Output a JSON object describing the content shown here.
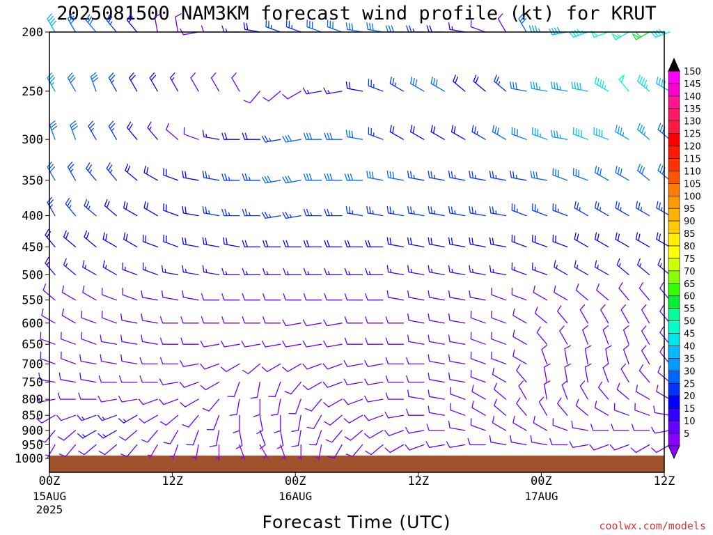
{
  "chart_data": {
    "type": "wind_barb_time_height",
    "title": "2025081500 NAM3KM forecast wind profile (kt) for KRUT",
    "xlabel": "Forecast Time (UTC)",
    "credit": "coolwx.com/models",
    "y_axis": {
      "label": "",
      "scale": "log",
      "range": [
        1000,
        200
      ],
      "reversed": true,
      "ticks": [
        "200",
        "250",
        "300",
        "350",
        "400",
        "450",
        "500",
        "550",
        "600",
        "650",
        "700",
        "750",
        "800",
        "850",
        "900",
        "950",
        "1000"
      ]
    },
    "x_axis": {
      "range_hours": [
        0,
        60
      ],
      "ticks": [
        {
          "hour": 0,
          "label": "00Z",
          "sub": [
            "15AUG",
            "2025"
          ]
        },
        {
          "hour": 12,
          "label": "12Z",
          "sub": []
        },
        {
          "hour": 24,
          "label": "00Z",
          "sub": [
            "16AUG"
          ]
        },
        {
          "hour": 36,
          "label": "12Z",
          "sub": []
        },
        {
          "hour": 48,
          "label": "00Z",
          "sub": [
            "17AUG"
          ]
        },
        {
          "hour": 60,
          "label": "12Z",
          "sub": []
        }
      ]
    },
    "barb_interval_hours": 2,
    "terrain_color": "#a0522d",
    "colorbar": {
      "labels": [
        "150",
        "145",
        "140",
        "135",
        "130",
        "125",
        "120",
        "115",
        "110",
        "105",
        "100",
        "95",
        "90",
        "85",
        "80",
        "75",
        "70",
        "65",
        "60",
        "55",
        "50",
        "45",
        "40",
        "35",
        "30",
        "25",
        "20",
        "15",
        "10",
        "5"
      ],
      "colors": [
        "#ff00ff",
        "#ff00cc",
        "#ff1493",
        "#ff1a66",
        "#ff1a40",
        "#ff0000",
        "#ff1a00",
        "#ff3300",
        "#ff5500",
        "#ff7a00",
        "#ff9900",
        "#ffb300",
        "#ffcc00",
        "#ffee00",
        "#ffff00",
        "#ccff00",
        "#88ff00",
        "#33ff00",
        "#00ee33",
        "#00ff99",
        "#00ffcc",
        "#00e5e5",
        "#00bbff",
        "#0099ff",
        "#0066ff",
        "#0033ff",
        "#0000ff",
        "#3300ff",
        "#6600ff",
        "#8800ff"
      ]
    },
    "series": [
      {
        "level": 200,
        "dir_deg": [
          330,
          330,
          320,
          320,
          320,
          350,
          350,
          260,
          270,
          270,
          280,
          290,
          290,
          290,
          290,
          280,
          280,
          270,
          270,
          270,
          280,
          290,
          330,
          330,
          270,
          260,
          250,
          250,
          240,
          240,
          250
        ],
        "speed_kt": [
          40,
          30,
          30,
          25,
          20,
          10,
          10,
          10,
          10,
          15,
          20,
          25,
          25,
          30,
          30,
          30,
          30,
          30,
          25,
          20,
          15,
          10,
          10,
          30,
          35,
          40,
          45,
          50,
          55,
          60,
          45
        ]
      },
      {
        "level": 250,
        "dir_deg": [
          330,
          330,
          340,
          330,
          330,
          330,
          330,
          330,
          330,
          330,
          220,
          230,
          240,
          260,
          260,
          280,
          290,
          300,
          300,
          300,
          310,
          310,
          310,
          280,
          280,
          280,
          280,
          300,
          320,
          310,
          300
        ],
        "speed_kt": [
          35,
          30,
          30,
          25,
          20,
          20,
          15,
          10,
          10,
          10,
          10,
          10,
          10,
          15,
          15,
          20,
          25,
          25,
          30,
          30,
          20,
          20,
          25,
          30,
          35,
          35,
          40,
          45,
          50,
          45,
          40
        ]
      },
      {
        "level": 300,
        "dir_deg": [
          340,
          340,
          330,
          330,
          320,
          320,
          310,
          290,
          280,
          270,
          270,
          260,
          260,
          270,
          270,
          280,
          290,
          300,
          300,
          300,
          300,
          300,
          300,
          290,
          290,
          280,
          290,
          290,
          300,
          310,
          310
        ],
        "speed_kt": [
          30,
          30,
          25,
          25,
          20,
          15,
          10,
          10,
          15,
          20,
          20,
          25,
          30,
          30,
          30,
          30,
          25,
          20,
          20,
          20,
          20,
          25,
          30,
          30,
          35,
          35,
          40,
          40,
          35,
          35,
          30
        ]
      },
      {
        "level": 350,
        "dir_deg": [
          330,
          330,
          320,
          320,
          310,
          300,
          290,
          280,
          280,
          270,
          270,
          260,
          260,
          270,
          270,
          270,
          280,
          280,
          280,
          280,
          280,
          280,
          280,
          280,
          280,
          290,
          290,
          300,
          300,
          310,
          310
        ],
        "speed_kt": [
          30,
          25,
          25,
          25,
          20,
          20,
          20,
          20,
          25,
          25,
          25,
          30,
          30,
          30,
          30,
          30,
          30,
          30,
          25,
          25,
          25,
          25,
          25,
          25,
          30,
          30,
          30,
          30,
          30,
          30,
          30
        ]
      },
      {
        "level": 400,
        "dir_deg": [
          330,
          320,
          310,
          310,
          300,
          300,
          290,
          280,
          280,
          270,
          270,
          260,
          260,
          270,
          270,
          280,
          280,
          280,
          280,
          280,
          280,
          280,
          280,
          290,
          290,
          290,
          300,
          300,
          300,
          300,
          300
        ],
        "speed_kt": [
          25,
          25,
          25,
          20,
          20,
          20,
          20,
          20,
          25,
          25,
          25,
          25,
          25,
          25,
          25,
          25,
          25,
          25,
          25,
          25,
          25,
          25,
          25,
          25,
          25,
          25,
          25,
          25,
          25,
          25,
          25
        ]
      },
      {
        "level": 450,
        "dir_deg": [
          320,
          310,
          310,
          300,
          300,
          290,
          290,
          280,
          280,
          280,
          270,
          270,
          270,
          270,
          270,
          270,
          270,
          280,
          280,
          280,
          280,
          280,
          280,
          290,
          290,
          290,
          300,
          300,
          300,
          300,
          300
        ],
        "speed_kt": [
          20,
          20,
          20,
          20,
          20,
          20,
          20,
          20,
          20,
          20,
          20,
          20,
          20,
          20,
          20,
          20,
          20,
          20,
          20,
          20,
          20,
          20,
          20,
          20,
          20,
          20,
          20,
          20,
          20,
          20,
          20
        ]
      },
      {
        "level": 500,
        "dir_deg": [
          320,
          310,
          300,
          300,
          290,
          290,
          280,
          280,
          280,
          270,
          270,
          270,
          270,
          270,
          270,
          270,
          270,
          280,
          280,
          280,
          280,
          280,
          280,
          290,
          290,
          300,
          300,
          300,
          310,
          310,
          310
        ],
        "speed_kt": [
          15,
          15,
          15,
          15,
          15,
          15,
          15,
          15,
          15,
          15,
          15,
          15,
          15,
          15,
          15,
          15,
          15,
          15,
          15,
          15,
          15,
          15,
          15,
          15,
          15,
          15,
          15,
          15,
          15,
          15,
          15
        ]
      },
      {
        "level": 550,
        "dir_deg": [
          310,
          300,
          300,
          290,
          290,
          280,
          280,
          280,
          270,
          270,
          270,
          270,
          270,
          270,
          270,
          270,
          270,
          280,
          280,
          280,
          280,
          280,
          290,
          290,
          300,
          300,
          310,
          310,
          320,
          320,
          320
        ],
        "speed_kt": [
          10,
          10,
          10,
          10,
          10,
          10,
          10,
          10,
          10,
          10,
          10,
          10,
          10,
          10,
          10,
          10,
          10,
          10,
          10,
          10,
          10,
          10,
          10,
          10,
          10,
          10,
          10,
          10,
          10,
          10,
          10
        ]
      },
      {
        "level": 600,
        "dir_deg": [
          300,
          300,
          290,
          290,
          280,
          280,
          270,
          270,
          270,
          270,
          270,
          270,
          260,
          260,
          260,
          270,
          270,
          270,
          280,
          280,
          280,
          290,
          290,
          300,
          310,
          320,
          330,
          330,
          330,
          330,
          320
        ],
        "speed_kt": [
          10,
          10,
          10,
          10,
          10,
          10,
          10,
          10,
          10,
          10,
          10,
          10,
          10,
          10,
          10,
          10,
          10,
          10,
          10,
          10,
          10,
          10,
          10,
          10,
          10,
          10,
          10,
          10,
          10,
          10,
          10
        ]
      },
      {
        "level": 650,
        "dir_deg": [
          290,
          290,
          290,
          280,
          280,
          280,
          270,
          270,
          260,
          260,
          260,
          260,
          260,
          260,
          260,
          270,
          270,
          270,
          280,
          280,
          280,
          290,
          290,
          300,
          320,
          330,
          340,
          340,
          340,
          330,
          320
        ],
        "speed_kt": [
          10,
          10,
          10,
          10,
          10,
          10,
          10,
          10,
          10,
          10,
          10,
          10,
          10,
          10,
          10,
          10,
          10,
          10,
          10,
          10,
          10,
          10,
          10,
          10,
          10,
          10,
          10,
          10,
          10,
          10,
          10
        ]
      },
      {
        "level": 700,
        "dir_deg": [
          290,
          290,
          280,
          280,
          280,
          270,
          270,
          260,
          250,
          240,
          230,
          240,
          240,
          250,
          250,
          260,
          260,
          270,
          270,
          280,
          280,
          290,
          290,
          300,
          340,
          350,
          350,
          350,
          340,
          330,
          320
        ],
        "speed_kt": [
          10,
          10,
          10,
          10,
          10,
          10,
          10,
          10,
          10,
          10,
          10,
          10,
          10,
          10,
          10,
          10,
          10,
          10,
          10,
          10,
          10,
          10,
          10,
          10,
          10,
          10,
          10,
          10,
          10,
          10,
          10
        ]
      },
      {
        "level": 750,
        "dir_deg": [
          280,
          280,
          280,
          270,
          270,
          270,
          260,
          250,
          240,
          200,
          190,
          200,
          220,
          240,
          250,
          260,
          260,
          270,
          270,
          280,
          280,
          290,
          300,
          320,
          350,
          350,
          350,
          340,
          330,
          320,
          310
        ],
        "speed_kt": [
          10,
          10,
          10,
          10,
          10,
          10,
          10,
          10,
          10,
          10,
          10,
          10,
          10,
          10,
          10,
          10,
          10,
          10,
          10,
          10,
          10,
          10,
          10,
          10,
          10,
          10,
          10,
          10,
          10,
          10,
          10
        ]
      },
      {
        "level": 800,
        "dir_deg": [
          260,
          270,
          270,
          260,
          260,
          250,
          250,
          240,
          220,
          190,
          180,
          190,
          200,
          220,
          240,
          250,
          260,
          270,
          280,
          280,
          290,
          300,
          310,
          330,
          350,
          340,
          330,
          320,
          310,
          300,
          300
        ],
        "speed_kt": [
          10,
          10,
          10,
          10,
          10,
          10,
          10,
          10,
          10,
          10,
          10,
          10,
          10,
          10,
          10,
          10,
          10,
          10,
          10,
          10,
          10,
          10,
          10,
          10,
          10,
          10,
          10,
          10,
          10,
          10,
          10
        ]
      },
      {
        "level": 850,
        "dir_deg": [
          240,
          250,
          250,
          250,
          240,
          240,
          230,
          220,
          200,
          180,
          170,
          180,
          190,
          210,
          230,
          240,
          250,
          260,
          270,
          280,
          290,
          300,
          310,
          320,
          330,
          320,
          310,
          300,
          290,
          290,
          280
        ],
        "speed_kt": [
          10,
          10,
          15,
          15,
          15,
          10,
          10,
          10,
          10,
          10,
          10,
          10,
          10,
          10,
          10,
          10,
          10,
          10,
          10,
          10,
          10,
          10,
          10,
          10,
          10,
          10,
          10,
          10,
          10,
          10,
          10
        ]
      },
      {
        "level": 900,
        "dir_deg": [
          220,
          230,
          240,
          240,
          230,
          220,
          210,
          200,
          190,
          170,
          160,
          170,
          190,
          200,
          220,
          230,
          240,
          250,
          260,
          270,
          280,
          290,
          300,
          300,
          300,
          290,
          280,
          270,
          270,
          270,
          260
        ],
        "speed_kt": [
          10,
          10,
          15,
          15,
          10,
          10,
          10,
          10,
          10,
          10,
          10,
          10,
          10,
          10,
          10,
          10,
          10,
          10,
          10,
          10,
          10,
          10,
          10,
          10,
          10,
          10,
          10,
          10,
          10,
          10,
          10
        ]
      },
      {
        "level": 950,
        "dir_deg": [
          210,
          220,
          230,
          230,
          220,
          210,
          200,
          190,
          180,
          160,
          150,
          160,
          180,
          190,
          210,
          220,
          230,
          240,
          250,
          260,
          260,
          270,
          280,
          280,
          280,
          270,
          260,
          250,
          250,
          240,
          240
        ],
        "speed_kt": [
          5,
          10,
          10,
          10,
          10,
          5,
          5,
          5,
          5,
          5,
          5,
          5,
          5,
          5,
          10,
          10,
          10,
          10,
          10,
          10,
          10,
          10,
          10,
          10,
          10,
          10,
          10,
          10,
          10,
          10,
          10
        ]
      }
    ]
  }
}
